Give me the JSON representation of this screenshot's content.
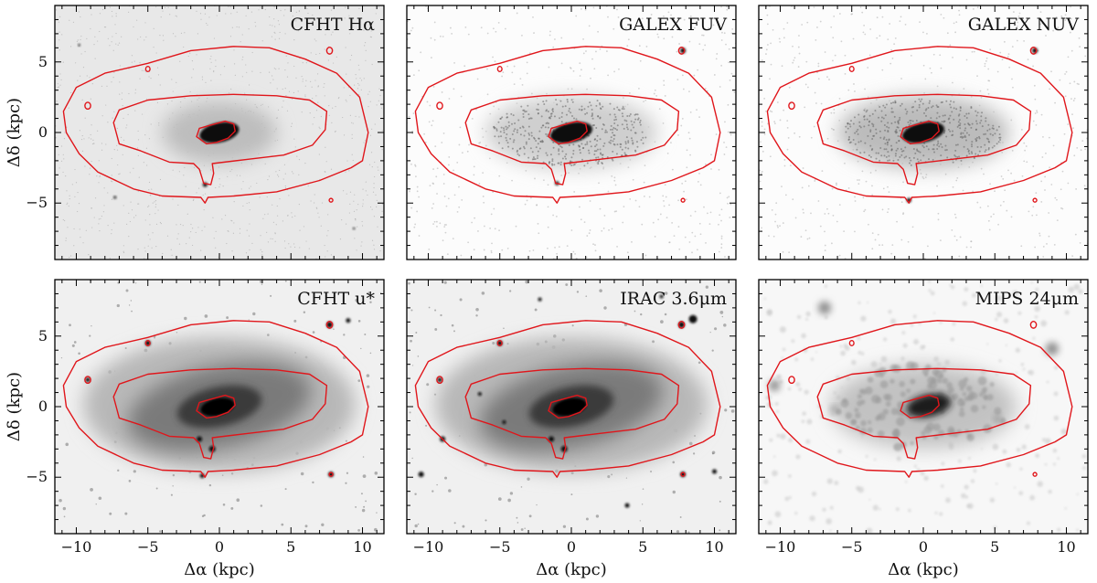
{
  "figure": {
    "x_axis_label": "Δα (kpc)",
    "y_axis_label": "Δδ (kpc)",
    "x_ticks": [
      -10,
      -5,
      0,
      5,
      10
    ],
    "y_ticks": [
      -5,
      0,
      5
    ],
    "xlim": [
      -11.5,
      11.5
    ],
    "ylim": [
      -9,
      9
    ],
    "contour_color": "#e0161b",
    "colormap": "grayscale-inverted"
  },
  "panels": [
    {
      "title": "CFHT Hα",
      "style": "halpha",
      "sources": [
        [
          -7.3,
          -4.6,
          1.5
        ],
        [
          -9.8,
          6.2,
          1.2
        ],
        [
          9.4,
          -6.8,
          1.2
        ],
        [
          -1.0,
          -3.7,
          2.5
        ]
      ]
    },
    {
      "title": "GALEX FUV",
      "style": "uv",
      "sources": [
        [
          7.8,
          5.8,
          3
        ],
        [
          -1.0,
          -3.6,
          2.2
        ]
      ]
    },
    {
      "title": "GALEX NUV",
      "style": "uv",
      "sources": [
        [
          7.8,
          5.8,
          3
        ],
        [
          -1.0,
          -4.8,
          2.5
        ]
      ]
    },
    {
      "title": "CFHT u*",
      "style": "optical",
      "sources": [
        [
          7.7,
          5.8,
          3.5
        ],
        [
          -5.0,
          4.5,
          3
        ],
        [
          -9.2,
          1.9,
          2.5
        ],
        [
          -1.4,
          -2.3,
          3
        ],
        [
          -0.5,
          -3.0,
          3.5
        ],
        [
          7.8,
          -4.8,
          3
        ],
        [
          -1.2,
          -4.9,
          2.5
        ],
        [
          9.0,
          6.1,
          2.5
        ]
      ]
    },
    {
      "title": "IRAC 3.6μm",
      "style": "optical",
      "sources": [
        [
          8.5,
          6.2,
          4.5
        ],
        [
          7.7,
          5.8,
          3.5
        ],
        [
          -5.0,
          4.5,
          3
        ],
        [
          -9.2,
          1.9,
          2.5
        ],
        [
          -1.4,
          -2.3,
          3
        ],
        [
          -0.5,
          -3.0,
          3.5
        ],
        [
          7.8,
          -4.8,
          3
        ],
        [
          -9.0,
          -2.3,
          3
        ],
        [
          -10.5,
          -4.8,
          3
        ],
        [
          -6.4,
          0.9,
          2
        ],
        [
          -4.7,
          -1.1,
          2
        ],
        [
          10.0,
          -4.6,
          2.5
        ],
        [
          3.9,
          -7.0,
          2.5
        ],
        [
          6.3,
          7.8,
          2
        ],
        [
          -2.2,
          7.6,
          2
        ]
      ]
    },
    {
      "title": "MIPS 24μm",
      "style": "mips",
      "sources": [
        [
          -6.9,
          7.0,
          7
        ],
        [
          9.0,
          4.1,
          7
        ],
        [
          -10.4,
          1.5,
          6
        ],
        [
          -6.2,
          -0.2,
          4
        ],
        [
          5.2,
          -0.9,
          4
        ]
      ]
    }
  ]
}
